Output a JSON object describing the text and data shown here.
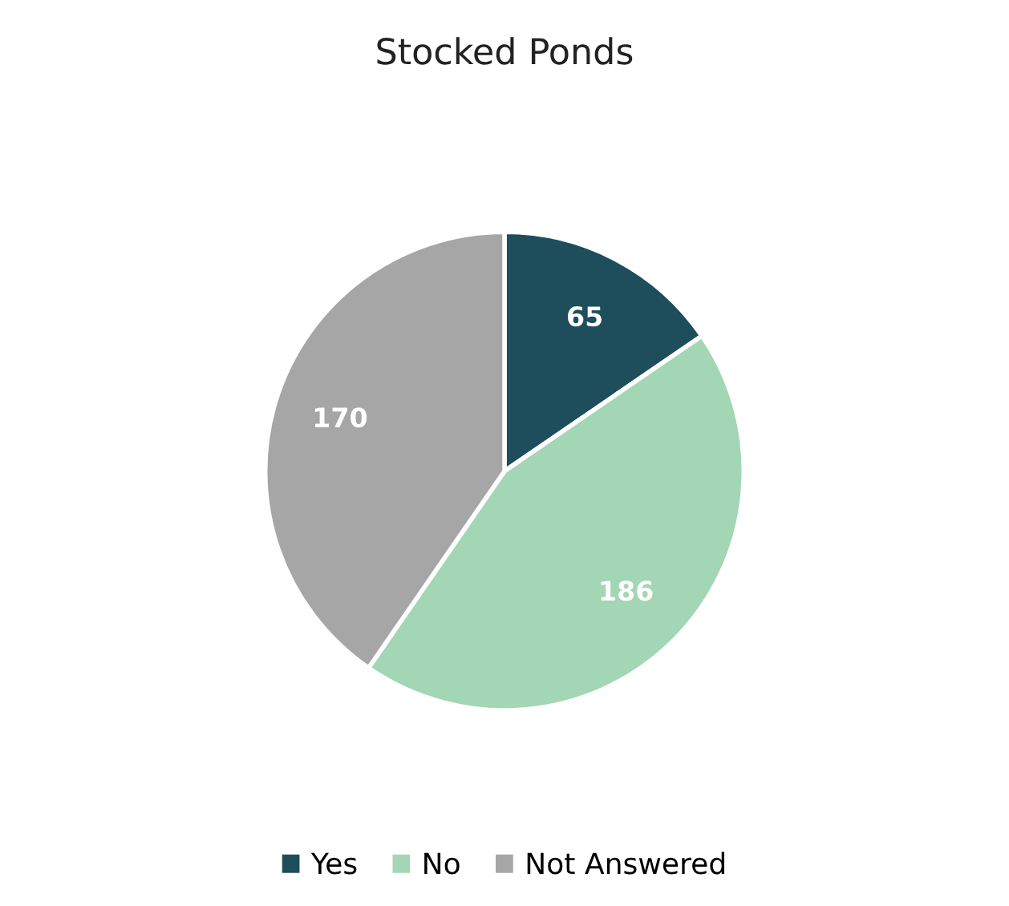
{
  "chart_data": {
    "type": "pie",
    "title": "Stocked Ponds",
    "categories": [
      "Yes",
      "No",
      "Not Answered"
    ],
    "values": [
      65,
      186,
      170
    ],
    "colors": [
      "#1e4d5c",
      "#a3d6b4",
      "#a6a6a6"
    ],
    "data_labels": true,
    "legend": "bottom"
  }
}
